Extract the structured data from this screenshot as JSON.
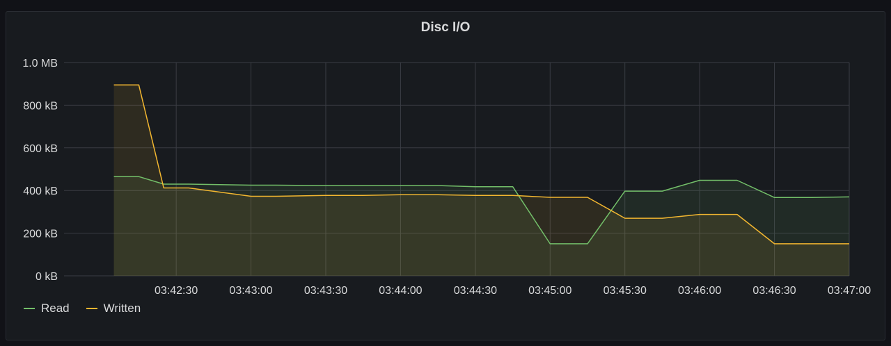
{
  "panel": {
    "title": "Disc I/O"
  },
  "colors": {
    "read": "#73bf69",
    "written": "#f2b630",
    "grid": "#3a3d44",
    "axis_text": "#d8d9da"
  },
  "chart_data": {
    "type": "area",
    "title": "Disc I/O",
    "x_unit": "time",
    "x": [
      "03:42:05",
      "03:42:15",
      "03:42:25",
      "03:42:35",
      "03:43:00",
      "03:43:10",
      "03:43:30",
      "03:43:45",
      "03:44:00",
      "03:44:15",
      "03:44:30",
      "03:44:45",
      "03:45:00",
      "03:45:15",
      "03:45:30",
      "03:45:45",
      "03:46:00",
      "03:46:15",
      "03:46:30",
      "03:46:45",
      "03:47:00"
    ],
    "series": [
      {
        "name": "Read",
        "values": [
          465,
          465,
          430,
          430,
          425,
          425,
          423,
          423,
          423,
          423,
          418,
          418,
          150,
          150,
          397,
          397,
          448,
          448,
          367,
          367,
          370
        ]
      },
      {
        "name": "Written",
        "values": [
          895,
          895,
          412,
          412,
          373,
          373,
          377,
          377,
          380,
          380,
          377,
          377,
          368,
          368,
          270,
          270,
          288,
          288,
          150,
          150,
          150
        ]
      }
    ],
    "yticks": [
      "0 kB",
      "200 kB",
      "400 kB",
      "600 kB",
      "800 kB",
      "1.0 MB"
    ],
    "xticks": [
      "03:42:30",
      "03:43:00",
      "03:43:30",
      "03:44:00",
      "03:44:30",
      "03:45:00",
      "03:45:30",
      "03:46:00",
      "03:46:30",
      "03:47:00"
    ],
    "ylim": [
      0,
      1000
    ],
    "y_unit": "kB",
    "grid": true,
    "legend_position": "bottom-left"
  }
}
